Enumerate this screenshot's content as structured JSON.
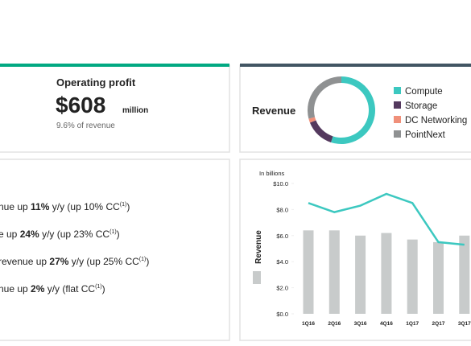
{
  "profit": {
    "title": "Operating profit",
    "amount": "$608",
    "unit": "million",
    "note": "9.6% of revenue"
  },
  "bullets": [
    {
      "pre": "nue up ",
      "bold": "11%",
      "post": " y/y (up 10% CC",
      "sup": "(1)",
      "end": ")"
    },
    {
      "pre": "e up ",
      "bold": "24%",
      "post": " y/y (up 23% CC",
      "sup": "(1)",
      "end": ")"
    },
    {
      "pre": " revenue up ",
      "bold": "27%",
      "post": " y/y (up 25% CC",
      "sup": "(1)",
      "end": ")"
    },
    {
      "pre": "nue up ",
      "bold": "2%",
      "post": " y/y (flat CC",
      "sup": "(1)",
      "end": ")"
    }
  ],
  "chart_data": [
    {
      "type": "pie",
      "title": "Revenue",
      "donut": true,
      "categories": [
        "Compute",
        "Storage",
        "DC Networking",
        "PointNext"
      ],
      "values": [
        55,
        14,
        2,
        29
      ],
      "colors": [
        "#3cc8c0",
        "#54395e",
        "#f0907a",
        "#8f9192"
      ]
    },
    {
      "type": "bar",
      "subtitle": "In billions",
      "ylabel": "Revenue",
      "categories": [
        "1Q16",
        "2Q16",
        "3Q16",
        "4Q16",
        "1Q17",
        "2Q17",
        "3Q17"
      ],
      "series": [
        {
          "name": "Revenue",
          "type": "bar",
          "color": "#c8cbcb",
          "values": [
            6.4,
            6.4,
            6.0,
            6.2,
            5.7,
            5.5,
            6.0
          ]
        },
        {
          "type": "line",
          "color": "#3cc8c0",
          "values": [
            8.5,
            7.8,
            8.3,
            9.2,
            8.5,
            5.5,
            5.3
          ]
        }
      ],
      "ylim": [
        0,
        10
      ],
      "yticks": [
        {
          "value": 0,
          "label": "$0.0"
        },
        {
          "value": 2,
          "label": "$2.0"
        },
        {
          "value": 4,
          "label": "$4.0"
        },
        {
          "value": 6,
          "label": "$6.0"
        },
        {
          "value": 8,
          "label": "$8.0"
        },
        {
          "value": 10,
          "label": "$10.0"
        }
      ]
    }
  ]
}
